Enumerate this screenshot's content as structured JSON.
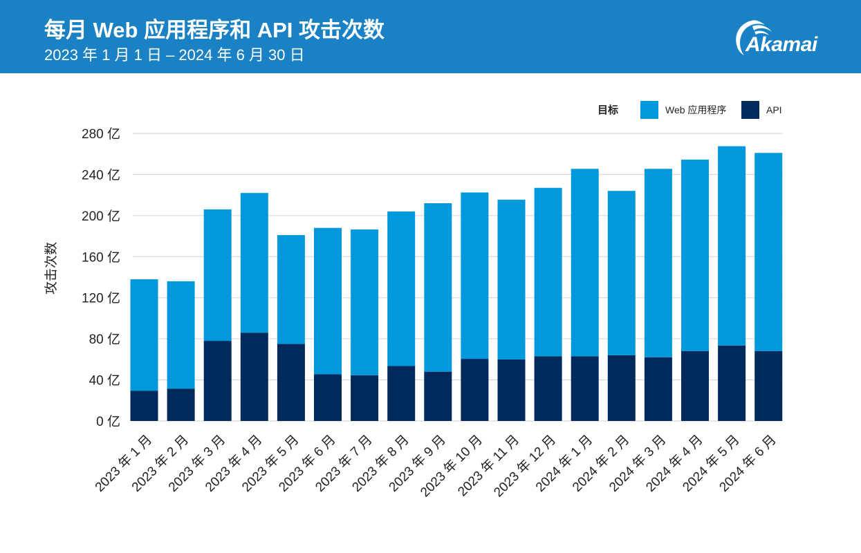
{
  "header": {
    "title": "每月 Web 应用程序和 API 攻击次数",
    "subtitle": "2023 年 1 月 1 日 – 2024 年 6 月 30 日",
    "logo_text": "Akamai",
    "background_color": "#1a82c4"
  },
  "chart_data": {
    "type": "bar",
    "stacked": true,
    "categories": [
      "2023 年 1 月",
      "2023 年 2 月",
      "2023 年 3 月",
      "2023 年 4 月",
      "2023 年 5 月",
      "2023 年 6 月",
      "2023 年 7 月",
      "2023 年 8 月",
      "2023 年 9 月",
      "2023 年 10 月",
      "2023 年 11 月",
      "2023 年 12 月",
      "2024 年 1 月",
      "2024 年 2 月",
      "2024 年 3 月",
      "2024 年 4 月",
      "2024 年 5 月",
      "2024 年 6 月"
    ],
    "series": [
      {
        "name": "API",
        "color": "#002a5c",
        "values": [
          29.5,
          31.5,
          78,
          86,
          75,
          45.5,
          44.5,
          53.5,
          48,
          60.5,
          60,
          63,
          63,
          64,
          62,
          68,
          73.5,
          68
        ]
      },
      {
        "name": "Web 应用程序",
        "color": "#0299dc",
        "values": [
          108.5,
          104.5,
          128,
          136,
          106,
          142.5,
          142,
          150.5,
          164,
          162,
          155.5,
          164,
          182.5,
          160,
          183.5,
          186.5,
          194,
          193
        ]
      }
    ],
    "totals": [
      138,
      136,
      206,
      222,
      181,
      188,
      186.5,
      204,
      212,
      222.5,
      215.5,
      227,
      245.5,
      224,
      245.5,
      254.5,
      267.5,
      261
    ],
    "ylabel": "攻击次数",
    "xlabel": "",
    "ylim": [
      0,
      280
    ],
    "yticks": [
      0,
      40,
      80,
      120,
      160,
      200,
      240,
      280
    ],
    "ytick_labels": [
      "0 亿",
      "40 亿",
      "80 亿",
      "120 亿",
      "160 亿",
      "200 亿",
      "240 亿",
      "280 亿"
    ],
    "legend": {
      "title": "目标",
      "placement": "top-right",
      "entries": [
        {
          "label": "Web 应用程序",
          "color": "#0299dc"
        },
        {
          "label": "API",
          "color": "#002a5c"
        }
      ]
    },
    "grid": true,
    "grid_color": "#d0d0d0"
  }
}
